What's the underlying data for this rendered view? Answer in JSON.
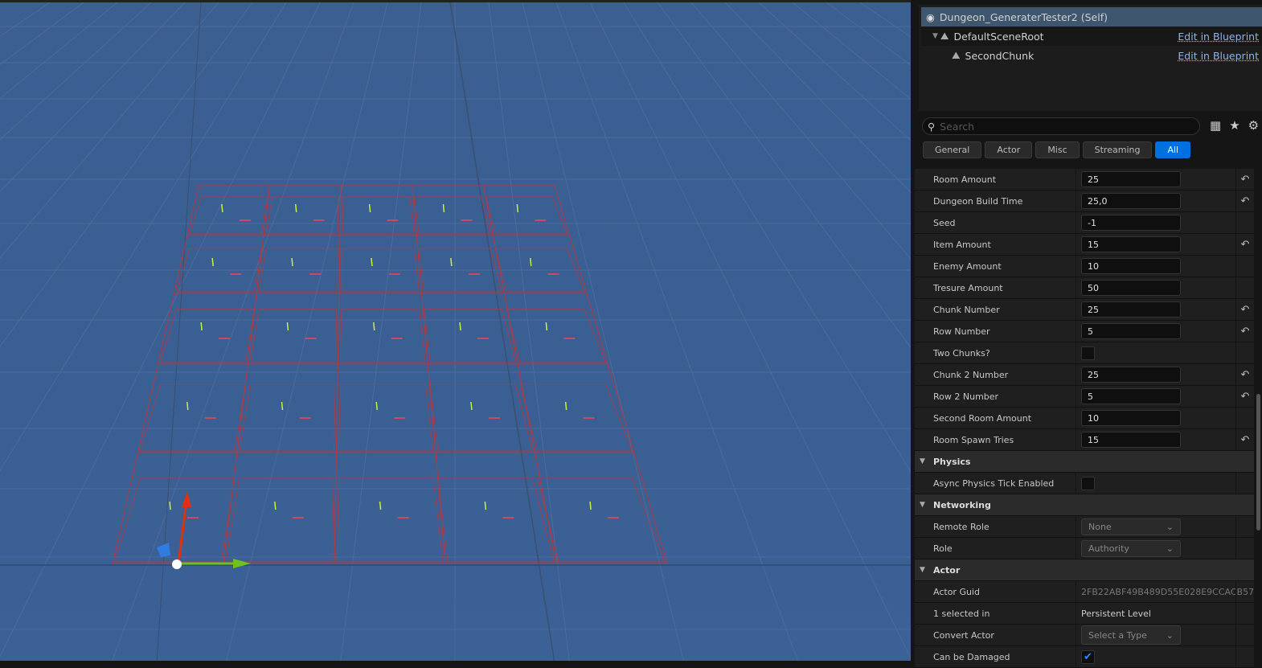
{
  "viewport": {
    "grid_rows": 5,
    "grid_cols": 5,
    "wire_color": "#b03a45",
    "marker_green": "#c8f040",
    "marker_red": "#ff4050"
  },
  "outliner": {
    "root": {
      "label": "Dungeon_GeneraterTester2 (Self)",
      "icon": "actor-sphere-icon"
    },
    "items": [
      {
        "label": "DefaultSceneRoot",
        "link": "Edit in Blueprint",
        "icon": "scene-component-icon"
      },
      {
        "label": "SecondChunk",
        "link": "Edit in Blueprint",
        "icon": "scene-component-icon"
      }
    ]
  },
  "search": {
    "placeholder": "Search"
  },
  "tabs": [
    {
      "label": "General"
    },
    {
      "label": "Actor"
    },
    {
      "label": "Misc"
    },
    {
      "label": "Streaming"
    },
    {
      "label": "All",
      "active": true
    }
  ],
  "props": [
    {
      "label": "Room Amount",
      "value": "25",
      "reset": true
    },
    {
      "label": "Dungeon Build Time",
      "value": "25,0",
      "reset": true
    },
    {
      "label": "Seed",
      "value": "-1",
      "reset": false
    },
    {
      "label": "Item Amount",
      "value": "15",
      "reset": true
    },
    {
      "label": "Enemy Amount",
      "value": "10",
      "reset": false
    },
    {
      "label": "Tresure Amount",
      "value": "50",
      "reset": false
    },
    {
      "label": "Chunk Number",
      "value": "25",
      "reset": true
    },
    {
      "label": "Row Number",
      "value": "5",
      "reset": true
    },
    {
      "label": "Two Chunks?",
      "checkbox": false
    },
    {
      "label": "Chunk 2 Number",
      "value": "25",
      "reset": true
    },
    {
      "label": "Row 2 Number",
      "value": "5",
      "reset": true
    },
    {
      "label": "Second Room Amount",
      "value": "10",
      "reset": false
    },
    {
      "label": "Room Spawn Tries",
      "value": "15",
      "reset": true
    }
  ],
  "physics": {
    "title": "Physics",
    "async_label": "Async Physics Tick Enabled",
    "async_checked": false
  },
  "networking": {
    "title": "Networking",
    "remote_role_label": "Remote Role",
    "remote_role": "None",
    "role_label": "Role",
    "role": "Authority"
  },
  "actor": {
    "title": "Actor",
    "guid_label": "Actor Guid",
    "guid": "2FB22ABF49B489D55E028E9CCACB57",
    "selected_label": "1 selected in",
    "selected_value": "Persistent Level",
    "convert_label": "Convert Actor",
    "convert_value": "Select a Type",
    "damaged_label": "Can be Damaged",
    "damaged_checked": true
  }
}
